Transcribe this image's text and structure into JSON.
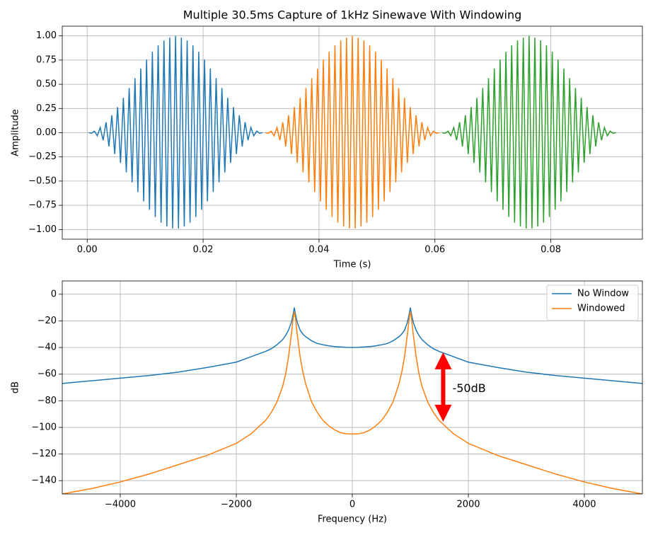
{
  "chart_data": [
    {
      "type": "line",
      "title": "Multiple 30.5ms Capture of 1kHz Sinewave With Windowing",
      "xlabel": "Time (s)",
      "ylabel": "Amplitude",
      "xlim": [
        -0.0043,
        0.0958
      ],
      "ylim": [
        -1.1,
        1.1
      ],
      "grid": true,
      "xticks": [
        {
          "value": 0,
          "label": "0.00"
        },
        {
          "value": 0.02,
          "label": "0.02"
        },
        {
          "value": 0.04,
          "label": "0.04"
        },
        {
          "value": 0.06,
          "label": "0.06"
        },
        {
          "value": 0.08,
          "label": "0.08"
        }
      ],
      "yticks": [
        {
          "value": -1,
          "label": "−1.00"
        },
        {
          "value": -0.75,
          "label": "−0.75"
        },
        {
          "value": -0.5,
          "label": "−0.50"
        },
        {
          "value": -0.25,
          "label": "−0.25"
        },
        {
          "value": 0,
          "label": "0.00"
        },
        {
          "value": 0.25,
          "label": "0.25"
        },
        {
          "value": 0.5,
          "label": "0.50"
        },
        {
          "value": 0.75,
          "label": "0.75"
        },
        {
          "value": 1,
          "label": "1.00"
        }
      ],
      "series": [
        {
          "color": "#1f77b4",
          "x": [
            0.00025,
            0.00075,
            0.00125,
            0.00175,
            0.00225,
            0.00275,
            0.00325,
            0.00375,
            0.00425,
            0.00475,
            0.00525,
            0.00575,
            0.00625,
            0.00675,
            0.00725,
            0.00775,
            0.00825,
            0.00875,
            0.00925,
            0.00975,
            0.01025,
            0.01075,
            0.01125,
            0.01175,
            0.01225,
            0.01275,
            0.01325,
            0.01375,
            0.01425,
            0.01475,
            0.01525,
            0.01575,
            0.01625,
            0.01675,
            0.01725,
            0.01775,
            0.01825,
            0.01875,
            0.01925,
            0.01975,
            0.02025,
            0.02075,
            0.02125,
            0.02175,
            0.02225,
            0.02275,
            0.02325,
            0.02375,
            0.02425,
            0.02475,
            0.02525,
            0.02575,
            0.02625,
            0.02675,
            0.02725,
            0.02775,
            0.02825,
            0.02875,
            0.02925,
            0.02975,
            0.03025
          ],
          "values": [
            0.001,
            -0.006,
            0.016,
            -0.032,
            0.053,
            -0.078,
            0.108,
            -0.142,
            0.18,
            -0.221,
            0.265,
            -0.311,
            0.36,
            -0.41,
            0.461,
            -0.512,
            0.563,
            -0.613,
            0.662,
            -0.71,
            0.755,
            -0.797,
            0.836,
            -0.871,
            0.902,
            -0.929,
            0.952,
            -0.969,
            0.982,
            -0.989,
            1.0,
            -0.989,
            0.982,
            -0.969,
            0.952,
            -0.929,
            0.902,
            -0.871,
            0.836,
            -0.797,
            0.755,
            -0.71,
            0.662,
            -0.613,
            0.563,
            -0.512,
            0.461,
            -0.41,
            0.36,
            -0.311,
            0.265,
            -0.221,
            0.18,
            -0.142,
            0.108,
            -0.078,
            0.053,
            -0.032,
            0.016,
            -0.006,
            0.001
          ]
        },
        {
          "color": "#ff7f0e",
          "x": [
            0.03075,
            0.03125,
            0.03175,
            0.03225,
            0.03275,
            0.03325,
            0.03375,
            0.03425,
            0.03475,
            0.03525,
            0.03575,
            0.03625,
            0.03675,
            0.03725,
            0.03775,
            0.03825,
            0.03875,
            0.03925,
            0.03975,
            0.04025,
            0.04075,
            0.04125,
            0.04175,
            0.04225,
            0.04275,
            0.04325,
            0.04375,
            0.04425,
            0.04475,
            0.04525,
            0.04575,
            0.04625,
            0.04675,
            0.04725,
            0.04775,
            0.04825,
            0.04875,
            0.04925,
            0.04975,
            0.05025,
            0.05075,
            0.05125,
            0.05175,
            0.05225,
            0.05275,
            0.05325,
            0.05375,
            0.05425,
            0.05475,
            0.05525,
            0.05575,
            0.05625,
            0.05675,
            0.05725,
            0.05775,
            0.05825,
            0.05875,
            0.05925,
            0.05975,
            0.06025,
            0.06075
          ],
          "values": [
            0.001,
            -0.006,
            0.016,
            -0.032,
            0.053,
            -0.078,
            0.108,
            -0.142,
            0.18,
            -0.221,
            0.265,
            -0.311,
            0.36,
            -0.41,
            0.461,
            -0.512,
            0.563,
            -0.613,
            0.662,
            -0.71,
            0.755,
            -0.797,
            0.836,
            -0.871,
            0.902,
            -0.929,
            0.952,
            -0.969,
            0.982,
            -0.989,
            1.0,
            -0.989,
            0.982,
            -0.969,
            0.952,
            -0.929,
            0.902,
            -0.871,
            0.836,
            -0.797,
            0.755,
            -0.71,
            0.662,
            -0.613,
            0.563,
            -0.512,
            0.461,
            -0.41,
            0.36,
            -0.311,
            0.265,
            -0.221,
            0.18,
            -0.142,
            0.108,
            -0.078,
            0.053,
            -0.032,
            0.016,
            -0.006,
            0.001
          ]
        },
        {
          "color": "#2ca02c",
          "x": [
            0.06125,
            0.06175,
            0.06225,
            0.06275,
            0.06325,
            0.06375,
            0.06425,
            0.06475,
            0.06525,
            0.06575,
            0.06625,
            0.06675,
            0.06725,
            0.06775,
            0.06825,
            0.06875,
            0.06925,
            0.06975,
            0.07025,
            0.07075,
            0.07125,
            0.07175,
            0.07225,
            0.07275,
            0.07325,
            0.07375,
            0.07425,
            0.07475,
            0.07525,
            0.07575,
            0.07625,
            0.07675,
            0.07725,
            0.07775,
            0.07825,
            0.07875,
            0.07925,
            0.07975,
            0.08025,
            0.08075,
            0.08125,
            0.08175,
            0.08225,
            0.08275,
            0.08325,
            0.08375,
            0.08425,
            0.08475,
            0.08525,
            0.08575,
            0.08625,
            0.08675,
            0.08725,
            0.08775,
            0.08825,
            0.08875,
            0.08925,
            0.08975,
            0.09025,
            0.09075,
            0.09125
          ],
          "values": [
            0.001,
            -0.006,
            0.016,
            -0.032,
            0.053,
            -0.078,
            0.108,
            -0.142,
            0.18,
            -0.221,
            0.265,
            -0.311,
            0.36,
            -0.41,
            0.461,
            -0.512,
            0.563,
            -0.613,
            0.662,
            -0.71,
            0.755,
            -0.797,
            0.836,
            -0.871,
            0.902,
            -0.929,
            0.952,
            -0.969,
            0.982,
            -0.989,
            1.0,
            -0.989,
            0.982,
            -0.969,
            0.952,
            -0.929,
            0.902,
            -0.871,
            0.836,
            -0.797,
            0.755,
            -0.71,
            0.662,
            -0.613,
            0.563,
            -0.512,
            0.461,
            -0.41,
            0.36,
            -0.311,
            0.265,
            -0.221,
            0.18,
            -0.142,
            0.108,
            -0.078,
            0.053,
            -0.032,
            0.016,
            -0.006,
            0.001
          ]
        }
      ]
    },
    {
      "type": "line",
      "xlabel": "Frequency (Hz)",
      "ylabel": "dB",
      "xlim": [
        -5000,
        5000
      ],
      "ylim": [
        -150,
        10
      ],
      "grid": true,
      "legend": "upper right",
      "xticks": [
        {
          "value": -4000,
          "label": "−4000"
        },
        {
          "value": -2000,
          "label": "−2000"
        },
        0,
        2000,
        4000
      ],
      "yticks": [
        {
          "value": -140,
          "label": "−140"
        },
        {
          "value": -120,
          "label": "−120"
        },
        {
          "value": -100,
          "label": "−100"
        },
        {
          "value": -80,
          "label": "−80"
        },
        {
          "value": -60,
          "label": "−60"
        },
        {
          "value": -40,
          "label": "−40"
        },
        {
          "value": -20,
          "label": "−20"
        },
        0
      ],
      "x": [
        -5000,
        -4500,
        -4000,
        -3500,
        -3000,
        -2500,
        -2000,
        -1750,
        -1500,
        -1400,
        -1300,
        -1200,
        -1150,
        -1100,
        -1050,
        -1020,
        -1000,
        -980,
        -950,
        -900,
        -850,
        -800,
        -700,
        -600,
        -500,
        -400,
        -300,
        -200,
        -100,
        0,
        100,
        200,
        300,
        400,
        500,
        600,
        700,
        800,
        850,
        900,
        950,
        980,
        1000,
        1020,
        1050,
        1100,
        1150,
        1200,
        1300,
        1400,
        1500,
        1750,
        2000,
        2500,
        3000,
        3500,
        4000,
        4500,
        5000
      ],
      "series": [
        {
          "name": "No Window",
          "color": "#1f77b4",
          "values": [
            -67,
            -65,
            -63,
            -61,
            -58.5,
            -55,
            -51,
            -47,
            -43,
            -41,
            -38,
            -34,
            -31,
            -27,
            -21,
            -15,
            -10,
            -15,
            -21,
            -27,
            -30,
            -32,
            -35,
            -37,
            -38,
            -38.8,
            -39.3,
            -39.6,
            -39.9,
            -40,
            -39.9,
            -39.6,
            -39.3,
            -38.8,
            -38,
            -37,
            -35,
            -32,
            -30,
            -27,
            -21,
            -15,
            -10,
            -15,
            -21,
            -27,
            -31,
            -34,
            -38,
            -41,
            -43,
            -47,
            -51,
            -55,
            -58.5,
            -61,
            -63,
            -65,
            -67
          ]
        },
        {
          "name": "Windowed",
          "color": "#ff7f0e",
          "values": [
            -150,
            -146,
            -141,
            -135,
            -128,
            -121,
            -112,
            -105,
            -95,
            -89,
            -81,
            -69,
            -60,
            -47,
            -30,
            -18,
            -13,
            -18,
            -30,
            -47,
            -59,
            -68,
            -81,
            -89,
            -95,
            -99,
            -102,
            -104,
            -104.8,
            -105,
            -104.8,
            -104,
            -102,
            -99,
            -95,
            -89,
            -81,
            -68,
            -59,
            -47,
            -30,
            -18,
            -13,
            -18,
            -30,
            -47,
            -60,
            -69,
            -81,
            -89,
            -95,
            -105,
            -112,
            -121,
            -128,
            -135,
            -141,
            -146,
            -150
          ]
        }
      ],
      "arrows": [
        {
          "x": 1566,
          "y_from": -43.6,
          "y_to": -95.7,
          "color": "red"
        }
      ],
      "annotations": [
        {
          "text": "-50dB",
          "x": 1725,
          "y": -71,
          "color": "red"
        }
      ]
    }
  ]
}
